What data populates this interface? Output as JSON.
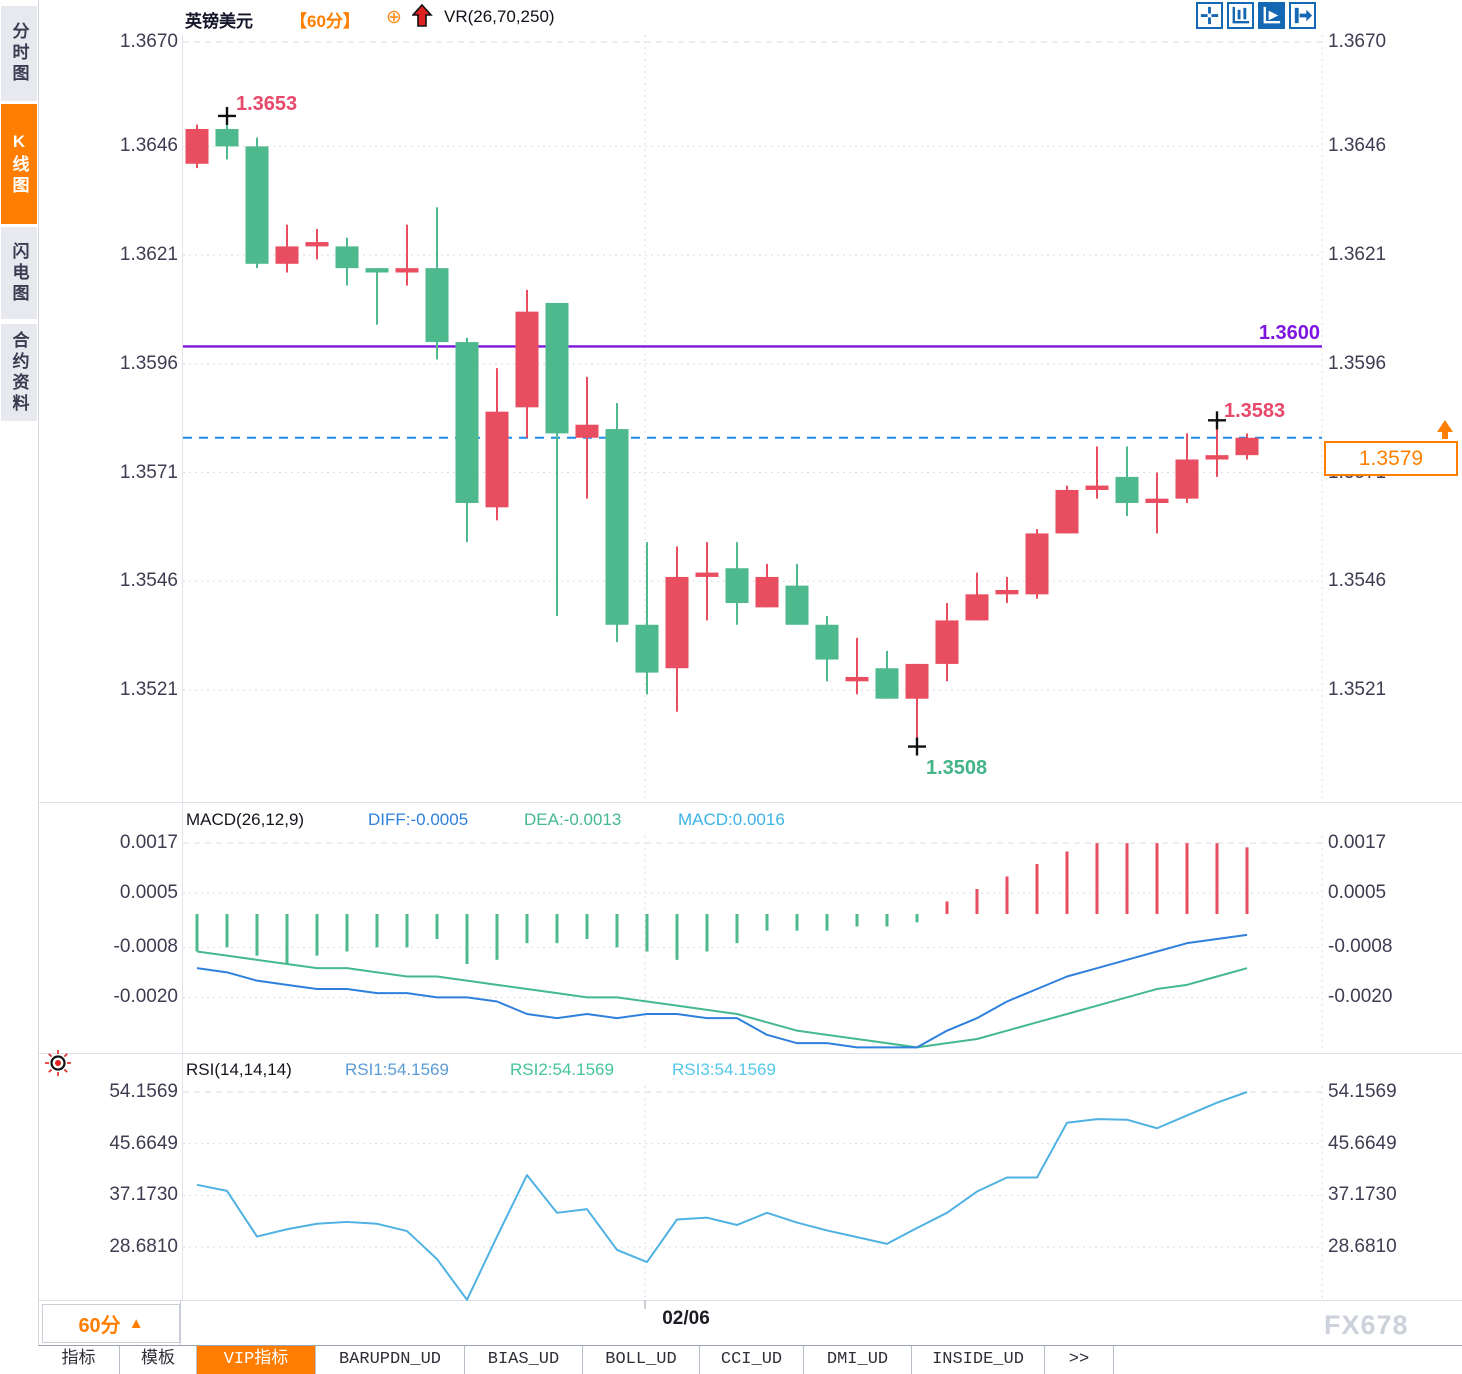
{
  "window": {
    "instrument": "英镑美元",
    "period": "【60分】",
    "plus_icon": "⊕",
    "indicator": "VR(26,70,250)"
  },
  "colors": {
    "up": "#e94d60",
    "down": "#4eb98c",
    "purple": "#7f16e0",
    "dashed_blue": "#1f8ceb",
    "orange": "#ff8000",
    "diff_blue": "#2f80dd",
    "dea_green": "#45b98e",
    "rsi_line": "#4fb2e2",
    "grid": "#dcdee4",
    "marker": "#111111"
  },
  "sidebar": {
    "items": [
      {
        "label": "分时图",
        "active": false
      },
      {
        "label": "K线图",
        "active": true
      },
      {
        "label": "闪电图",
        "active": false
      },
      {
        "label": "合约资料",
        "active": false
      }
    ]
  },
  "toolbar": {
    "icons": [
      {
        "name": "crosshair-icon",
        "active": false
      },
      {
        "name": "axis-scale-icon",
        "active": false
      },
      {
        "name": "chart-play-icon",
        "active": true
      },
      {
        "name": "exit-arrow-icon",
        "active": false
      }
    ]
  },
  "main_chart": {
    "y_ticks": [
      "1.3670",
      "1.3646",
      "1.3621",
      "1.3596",
      "1.3571",
      "1.3546",
      "1.3521"
    ],
    "purple_line_label": "1.3600",
    "high_label": "1.3653",
    "low_label": "1.3508",
    "recent_high_label": "1.3583",
    "last_price_label": "1.3579"
  },
  "macd_panel": {
    "title": "MACD(26,12,9)",
    "diff_label": "DIFF:-0.0005",
    "dea_label": "DEA:-0.0013",
    "macd_label": "MACD:0.0016",
    "y_ticks": [
      "0.0017",
      "0.0005",
      "-0.0008",
      "-0.0020"
    ]
  },
  "rsi_panel": {
    "title": "RSI(14,14,14)",
    "rsi1_label": "RSI1:54.1569",
    "rsi2_label": "RSI2:54.1569",
    "rsi3_label": "RSI3:54.1569",
    "y_ticks": [
      "54.1569",
      "45.6649",
      "37.1730",
      "28.6810"
    ]
  },
  "footer": {
    "period_label": "60分",
    "period_triangle": "▲",
    "date_label": "02/06",
    "watermark": "FX678"
  },
  "tabs": [
    {
      "label": "指标",
      "active": false
    },
    {
      "label": "模板",
      "active": false
    },
    {
      "label": "VIP指标",
      "active": true
    },
    {
      "label": "BARUPDN_UD",
      "active": false
    },
    {
      "label": "BIAS_UD",
      "active": false
    },
    {
      "label": "BOLL_UD",
      "active": false
    },
    {
      "label": "CCI_UD",
      "active": false
    },
    {
      "label": "DMI_UD",
      "active": false
    },
    {
      "label": "INSIDE_UD",
      "active": false
    },
    {
      "label": ">>",
      "active": false
    }
  ],
  "chart_data": [
    {
      "type": "candlestick",
      "title": "英镑美元 60分",
      "ylim": [
        1.3521,
        1.367
      ],
      "y_ticks": [
        1.367,
        1.3646,
        1.3621,
        1.3596,
        1.3571,
        1.3546,
        1.3521
      ],
      "ohlc": [
        [
          1.3642,
          1.3651,
          1.3641,
          1.365
        ],
        [
          1.365,
          1.3653,
          1.3643,
          1.3646
        ],
        [
          1.3646,
          1.3648,
          1.3618,
          1.3619
        ],
        [
          1.3619,
          1.3628,
          1.3617,
          1.3623
        ],
        [
          1.3623,
          1.3627,
          1.362,
          1.3624
        ],
        [
          1.3623,
          1.3625,
          1.3614,
          1.3618
        ],
        [
          1.3618,
          1.3618,
          1.3605,
          1.3617
        ],
        [
          1.3617,
          1.3628,
          1.3614,
          1.3618
        ],
        [
          1.3618,
          1.3632,
          1.3597,
          1.3601
        ],
        [
          1.3601,
          1.3602,
          1.3555,
          1.3564
        ],
        [
          1.3563,
          1.3595,
          1.356,
          1.3585
        ],
        [
          1.3586,
          1.3613,
          1.3579,
          1.3608
        ],
        [
          1.361,
          1.361,
          1.3538,
          1.358
        ],
        [
          1.3579,
          1.3593,
          1.3565,
          1.3582
        ],
        [
          1.3581,
          1.3587,
          1.3532,
          1.3536
        ],
        [
          1.3536,
          1.3555,
          1.352,
          1.3525
        ],
        [
          1.3526,
          1.3554,
          1.3516,
          1.3547
        ],
        [
          1.3547,
          1.3555,
          1.3537,
          1.3548
        ],
        [
          1.3549,
          1.3555,
          1.3536,
          1.3541
        ],
        [
          1.354,
          1.355,
          1.354,
          1.3547
        ],
        [
          1.3545,
          1.355,
          1.3536,
          1.3536
        ],
        [
          1.3536,
          1.3538,
          1.3523,
          1.3528
        ],
        [
          1.3523,
          1.3533,
          1.352,
          1.3524
        ],
        [
          1.3526,
          1.353,
          1.3519,
          1.3519
        ],
        [
          1.3519,
          1.3527,
          1.3508,
          1.3527
        ],
        [
          1.3527,
          1.3541,
          1.3523,
          1.3537
        ],
        [
          1.3537,
          1.3548,
          1.3537,
          1.3543
        ],
        [
          1.3543,
          1.3547,
          1.3541,
          1.3544
        ],
        [
          1.3543,
          1.3558,
          1.3542,
          1.3557
        ],
        [
          1.3557,
          1.3568,
          1.3557,
          1.3567
        ],
        [
          1.3567,
          1.3577,
          1.3565,
          1.3568
        ],
        [
          1.357,
          1.3577,
          1.3561,
          1.3564
        ],
        [
          1.3564,
          1.3571,
          1.3557,
          1.3565
        ],
        [
          1.3565,
          1.358,
          1.3564,
          1.3574
        ],
        [
          1.3574,
          1.3583,
          1.357,
          1.3575
        ],
        [
          1.3575,
          1.358,
          1.3574,
          1.3579
        ]
      ],
      "overlays": {
        "purple_hline": 1.36,
        "dashed_hline": 1.3579,
        "last_price": 1.3579,
        "high_marker": {
          "index": 1,
          "price": 1.3653
        },
        "low_marker": {
          "index": 24,
          "price": 1.3508
        },
        "recent_high_marker": {
          "index": 34,
          "price": 1.3583
        }
      },
      "x_date_tick": {
        "index": 15,
        "label": "02/06"
      }
    },
    {
      "type": "bar",
      "name": "MACD",
      "params": [
        26,
        12,
        9
      ],
      "y_ticks": [
        0.0017,
        0.0005,
        -0.0008,
        -0.002
      ],
      "hist": [
        -0.0009,
        -0.0008,
        -0.001,
        -0.0012,
        -0.001,
        -0.0009,
        -0.0008,
        -0.0008,
        -0.0006,
        -0.0012,
        -0.0011,
        -0.0007,
        -0.0007,
        -0.0006,
        -0.0008,
        -0.0009,
        -0.0011,
        -0.0009,
        -0.0007,
        -0.0004,
        -0.0004,
        -0.0004,
        -0.0003,
        -0.0003,
        -0.0002,
        0.0003,
        0.0006,
        0.0009,
        0.0012,
        0.0015,
        0.0017,
        0.0017,
        0.0017,
        0.0017,
        0.0017,
        0.0016
      ],
      "diff": [
        -0.0013,
        -0.0014,
        -0.0016,
        -0.0017,
        -0.0018,
        -0.0018,
        -0.0019,
        -0.0019,
        -0.002,
        -0.002,
        -0.0021,
        -0.0024,
        -0.0025,
        -0.0024,
        -0.0025,
        -0.0024,
        -0.0024,
        -0.0025,
        -0.0025,
        -0.0029,
        -0.0031,
        -0.0031,
        -0.0032,
        -0.0032,
        -0.0032,
        -0.0028,
        -0.0025,
        -0.0021,
        -0.0018,
        -0.0015,
        -0.0013,
        -0.0011,
        -0.0009,
        -0.0007,
        -0.0006,
        -0.0005
      ],
      "dea": [
        -0.0009,
        -0.001,
        -0.0011,
        -0.0012,
        -0.0013,
        -0.0013,
        -0.0014,
        -0.0015,
        -0.0015,
        -0.0016,
        -0.0017,
        -0.0018,
        -0.0019,
        -0.002,
        -0.002,
        -0.0021,
        -0.0022,
        -0.0023,
        -0.0024,
        -0.0026,
        -0.0028,
        -0.0029,
        -0.003,
        -0.0031,
        -0.0032,
        -0.0031,
        -0.003,
        -0.0028,
        -0.0026,
        -0.0024,
        -0.0022,
        -0.002,
        -0.0018,
        -0.0017,
        -0.0015,
        -0.0013
      ]
    },
    {
      "type": "line",
      "name": "RSI",
      "params": [
        14,
        14,
        14
      ],
      "y_ticks": [
        54.1569,
        45.6649,
        37.173,
        28.681
      ],
      "values": [
        38.9,
        37.9,
        30.4,
        31.6,
        32.5,
        32.8,
        32.5,
        31.3,
        26.7,
        20.0,
        30.4,
        40.5,
        34.3,
        34.9,
        28.2,
        26.2,
        33.2,
        33.5,
        32.3,
        34.3,
        32.7,
        31.4,
        30.3,
        29.2,
        31.8,
        34.3,
        37.8,
        40.1,
        40.1,
        49.1,
        49.7,
        49.6,
        48.2,
        50.3,
        52.4,
        54.1569
      ]
    }
  ]
}
